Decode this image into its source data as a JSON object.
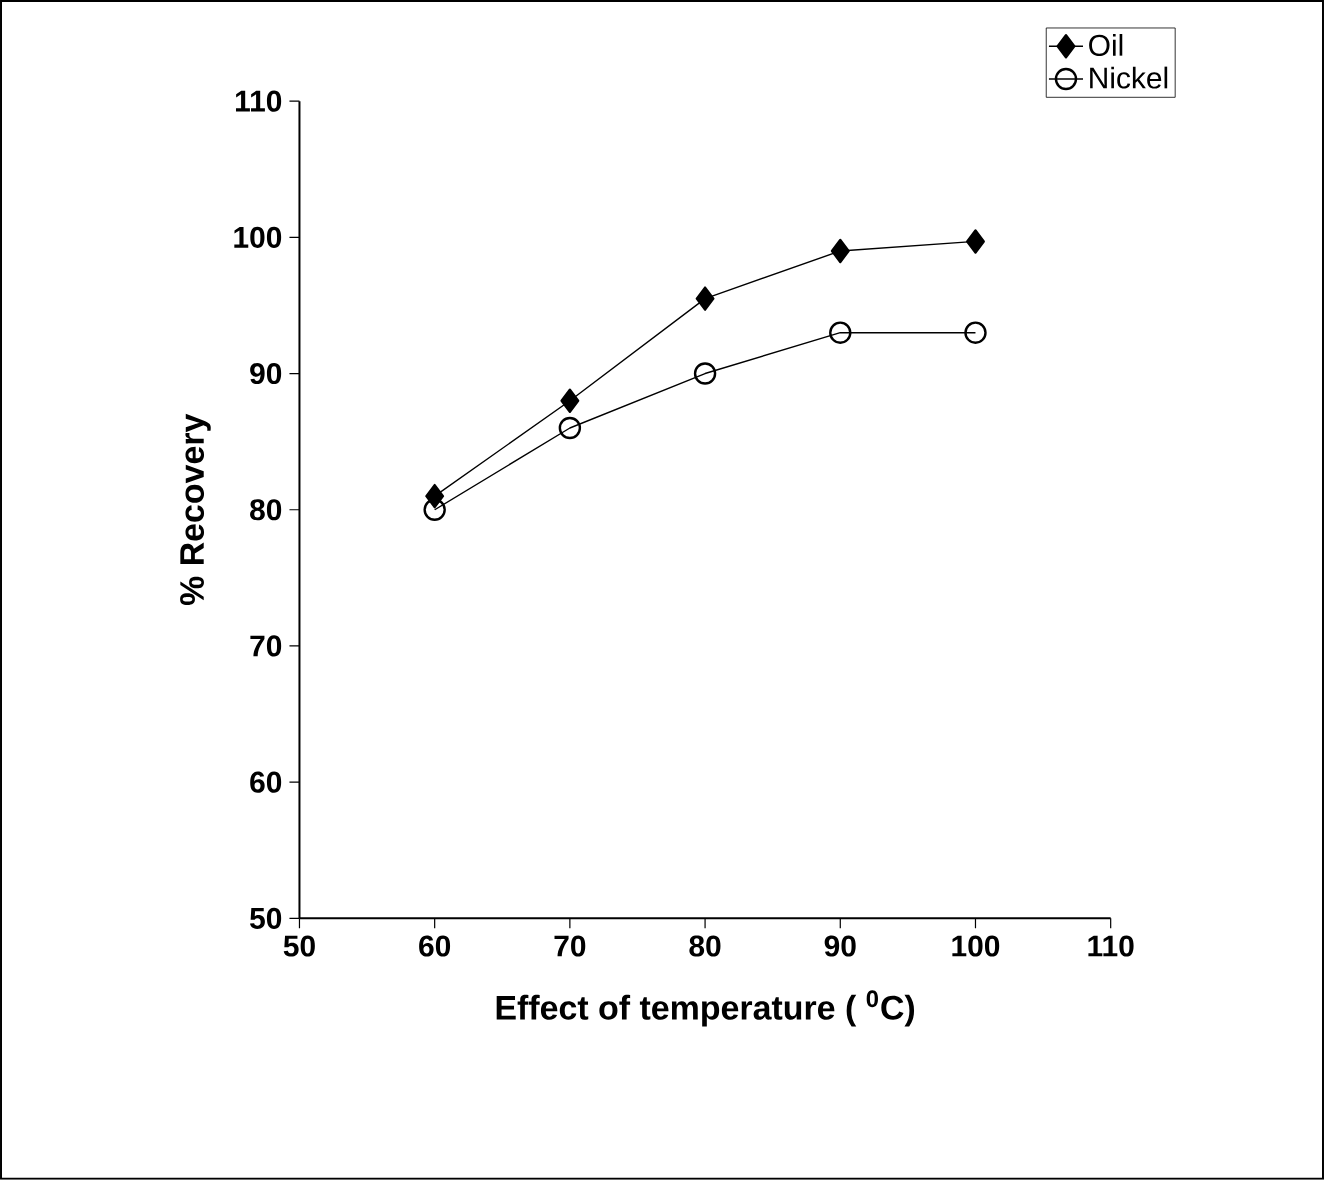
{
  "chart_data": {
    "type": "line",
    "xlabel": "Effect of temperature ( $^{0}$C)",
    "ylabel": "% Recovery",
    "x": [
      60,
      70,
      80,
      90,
      100
    ],
    "series": [
      {
        "name": "Oil",
        "color": "#000000",
        "marker": "diamond",
        "values": [
          81,
          88,
          95.5,
          99,
          99.7
        ]
      },
      {
        "name": "Nickel",
        "color": "#000000",
        "marker": "circle",
        "values": [
          80,
          86,
          90,
          93,
          93
        ]
      }
    ],
    "xlim": [
      50,
      110
    ],
    "ylim": [
      50,
      110
    ],
    "xticks": [
      50,
      60,
      70,
      80,
      90,
      100,
      110
    ],
    "yticks": [
      50,
      60,
      70,
      80,
      90,
      100,
      110
    ],
    "grid": false,
    "legend": "top right",
    "line_style": "solid"
  }
}
